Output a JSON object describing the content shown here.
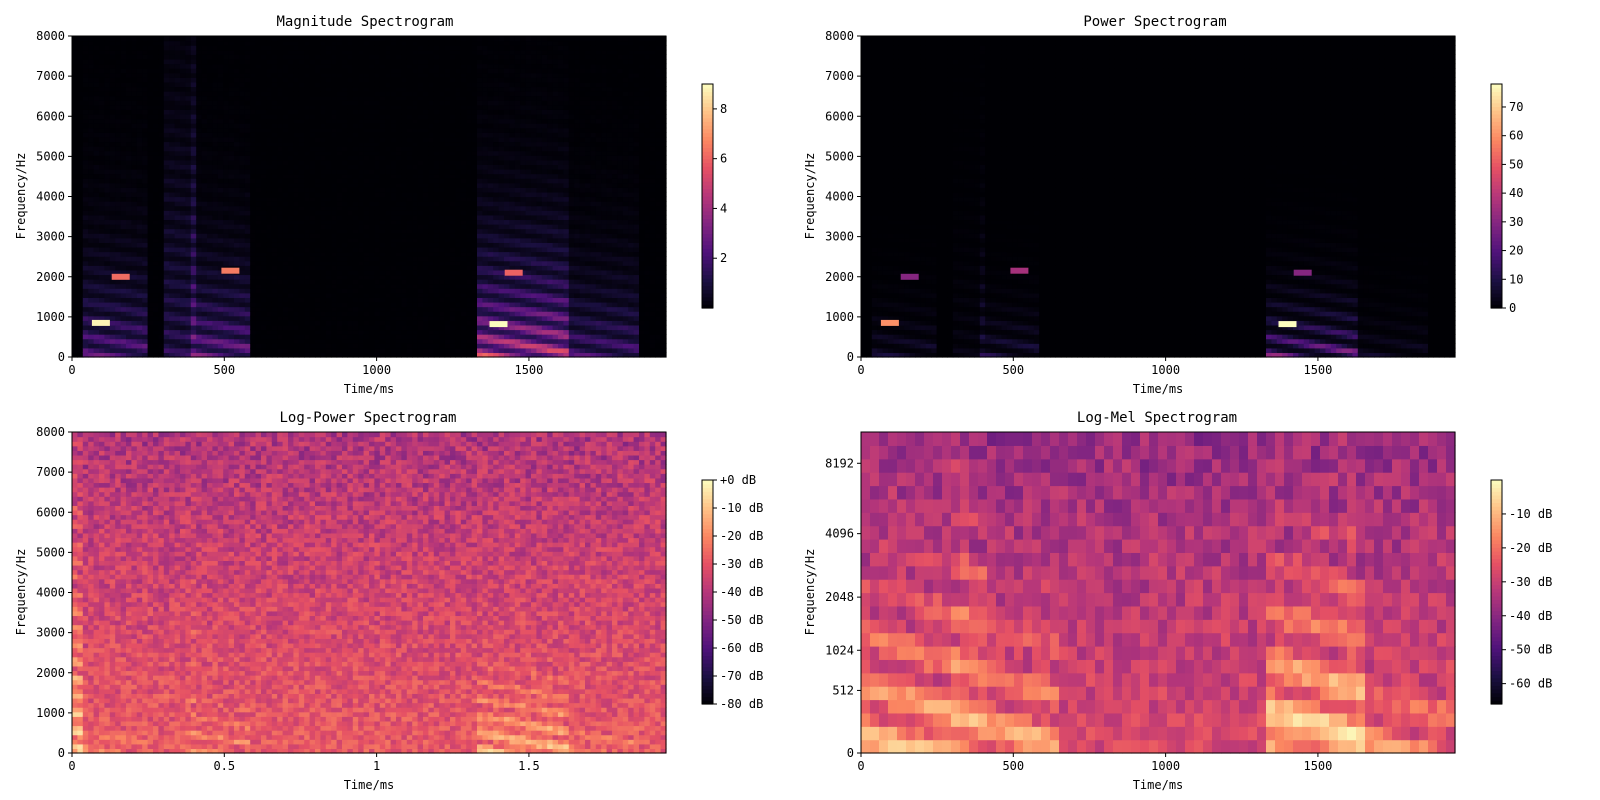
{
  "palette": {
    "magma": [
      "#000004",
      "#1c1044",
      "#4f127b",
      "#812581",
      "#b5367a",
      "#e55064",
      "#fb8761",
      "#fec287",
      "#fcfdbf"
    ],
    "frame": "#000000",
    "background": "#ffffff"
  },
  "chart_data": [
    {
      "type": "heatmap",
      "title": "Magnitude Spectrogram",
      "xlabel": "Time/ms",
      "ylabel": "Frequency/Hz",
      "xlim": [
        0,
        1950
      ],
      "ylim": [
        0,
        8000
      ],
      "x_ticks": [
        {
          "value": 0,
          "label": "0"
        },
        {
          "value": 500,
          "label": "500"
        },
        {
          "value": 1000,
          "label": "1000"
        },
        {
          "value": 1500,
          "label": "1500"
        }
      ],
      "y_ticks": [
        {
          "value": 0,
          "label": "0"
        },
        {
          "value": 1000,
          "label": "1000"
        },
        {
          "value": 2000,
          "label": "2000"
        },
        {
          "value": 3000,
          "label": "3000"
        },
        {
          "value": 4000,
          "label": "4000"
        },
        {
          "value": 5000,
          "label": "5000"
        },
        {
          "value": 6000,
          "label": "6000"
        },
        {
          "value": 7000,
          "label": "7000"
        },
        {
          "value": 8000,
          "label": "8000"
        }
      ],
      "colorbar": {
        "range": [
          0,
          9
        ],
        "ticks": [
          {
            "value": 2,
            "label": "2"
          },
          {
            "value": 4,
            "label": "4"
          },
          {
            "value": 6,
            "label": "6"
          },
          {
            "value": 8,
            "label": "8"
          }
        ]
      },
      "energy_gamma": 1.7,
      "floor": 0.02,
      "noise": 0.03,
      "voiced_segments": [
        {
          "t0": 40,
          "t1": 230,
          "level": 0.55,
          "hf": 0.4
        },
        {
          "t0": 320,
          "t1": 395,
          "level": 0.4,
          "hf": 1.0
        },
        {
          "t0": 400,
          "t1": 580,
          "level": 0.6,
          "hf": 0.35
        },
        {
          "t0": 1345,
          "t1": 1620,
          "level": 0.8,
          "hf": 0.45
        },
        {
          "t0": 1620,
          "t1": 1850,
          "level": 0.5,
          "hf": 0.3
        }
      ],
      "hotspots": [
        {
          "t": 95,
          "f": 850,
          "value": 8.8
        },
        {
          "t": 160,
          "f": 2000,
          "value": 6.2
        },
        {
          "t": 520,
          "f": 2150,
          "value": 6.5
        },
        {
          "t": 1400,
          "f": 820,
          "value": 9.0
        },
        {
          "t": 1450,
          "f": 2100,
          "value": 6.0
        }
      ]
    },
    {
      "type": "heatmap",
      "title": "Power Spectrogram",
      "xlabel": "Time/ms",
      "ylabel": "Frequency/Hz",
      "xlim": [
        0,
        1950
      ],
      "ylim": [
        0,
        8000
      ],
      "x_ticks": [
        {
          "value": 0,
          "label": "0"
        },
        {
          "value": 500,
          "label": "500"
        },
        {
          "value": 1000,
          "label": "1000"
        },
        {
          "value": 1500,
          "label": "1500"
        }
      ],
      "y_ticks": [
        {
          "value": 0,
          "label": "0"
        },
        {
          "value": 1000,
          "label": "1000"
        },
        {
          "value": 2000,
          "label": "2000"
        },
        {
          "value": 3000,
          "label": "3000"
        },
        {
          "value": 4000,
          "label": "4000"
        },
        {
          "value": 5000,
          "label": "5000"
        },
        {
          "value": 6000,
          "label": "6000"
        },
        {
          "value": 7000,
          "label": "7000"
        },
        {
          "value": 8000,
          "label": "8000"
        }
      ],
      "colorbar": {
        "range": [
          0,
          78
        ],
        "ticks": [
          {
            "value": 0,
            "label": "0"
          },
          {
            "value": 10,
            "label": "10"
          },
          {
            "value": 20,
            "label": "20"
          },
          {
            "value": 30,
            "label": "30"
          },
          {
            "value": 40,
            "label": "40"
          },
          {
            "value": 50,
            "label": "50"
          },
          {
            "value": 60,
            "label": "60"
          },
          {
            "value": 70,
            "label": "70"
          }
        ]
      },
      "energy_gamma": 3.4,
      "floor": 0.0,
      "noise": 0.01,
      "voiced_segments": [
        {
          "t0": 40,
          "t1": 230,
          "level": 0.55,
          "hf": 0.4
        },
        {
          "t0": 320,
          "t1": 395,
          "level": 0.4,
          "hf": 1.0
        },
        {
          "t0": 400,
          "t1": 580,
          "level": 0.6,
          "hf": 0.35
        },
        {
          "t0": 1345,
          "t1": 1620,
          "level": 0.8,
          "hf": 0.45
        },
        {
          "t0": 1620,
          "t1": 1850,
          "level": 0.5,
          "hf": 0.3
        }
      ],
      "hotspots": [
        {
          "t": 95,
          "f": 850,
          "value": 60
        },
        {
          "t": 160,
          "f": 2000,
          "value": 30
        },
        {
          "t": 520,
          "f": 2150,
          "value": 36
        },
        {
          "t": 1400,
          "f": 820,
          "value": 78
        },
        {
          "t": 1450,
          "f": 2100,
          "value": 30
        }
      ]
    },
    {
      "type": "heatmap",
      "title": "Log-Power Spectrogram",
      "xlabel": "Time/ms",
      "ylabel": "Frequency/Hz",
      "xlim": [
        0,
        1.95
      ],
      "ylim": [
        0,
        8000
      ],
      "x_ticks": [
        {
          "value": 0,
          "label": "0"
        },
        {
          "value": 0.5,
          "label": "0.5"
        },
        {
          "value": 1,
          "label": "1"
        },
        {
          "value": 1.5,
          "label": "1.5"
        }
      ],
      "y_ticks": [
        {
          "value": 0,
          "label": "0"
        },
        {
          "value": 1000,
          "label": "1000"
        },
        {
          "value": 2000,
          "label": "2000"
        },
        {
          "value": 3000,
          "label": "3000"
        },
        {
          "value": 4000,
          "label": "4000"
        },
        {
          "value": 5000,
          "label": "5000"
        },
        {
          "value": 6000,
          "label": "6000"
        },
        {
          "value": 7000,
          "label": "7000"
        },
        {
          "value": 8000,
          "label": "8000"
        }
      ],
      "colorbar": {
        "range": [
          -80,
          0
        ],
        "ticks": [
          {
            "value": 0,
            "label": "+0 dB"
          },
          {
            "value": -10,
            "label": "-10 dB"
          },
          {
            "value": -20,
            "label": "-20 dB"
          },
          {
            "value": -30,
            "label": "-30 dB"
          },
          {
            "value": -40,
            "label": "-40 dB"
          },
          {
            "value": -50,
            "label": "-50 dB"
          },
          {
            "value": -60,
            "label": "-60 dB"
          },
          {
            "value": -70,
            "label": "-70 dB"
          },
          {
            "value": -80,
            "label": "-80 dB"
          }
        ]
      },
      "energy_gamma": 0.45,
      "floor": 0.38,
      "noise": 0.2,
      "voiced_segments": [
        {
          "t0": 0.0,
          "t1": 0.02,
          "level": 0.9,
          "hf": 1.0
        },
        {
          "t0": 0.04,
          "t1": 0.23,
          "level": 0.55,
          "hf": 0.5
        },
        {
          "t0": 0.32,
          "t1": 0.395,
          "level": 0.5,
          "hf": 1.0
        },
        {
          "t0": 0.4,
          "t1": 0.58,
          "level": 0.6,
          "hf": 0.45
        },
        {
          "t0": 1.345,
          "t1": 1.62,
          "level": 0.8,
          "hf": 0.55
        },
        {
          "t0": 1.62,
          "t1": 1.85,
          "level": 0.55,
          "hf": 0.4
        }
      ],
      "hotspots": []
    },
    {
      "type": "heatmap",
      "title": "Log-Mel Spectrogram",
      "xlabel": "Time/ms",
      "ylabel": "Frequency/Hz",
      "xlim": [
        0,
        1950
      ],
      "ylim": [
        0,
        11000
      ],
      "y_scale": "mel",
      "x_ticks": [
        {
          "value": 0,
          "label": "0"
        },
        {
          "value": 500,
          "label": "500"
        },
        {
          "value": 1000,
          "label": "1000"
        },
        {
          "value": 1500,
          "label": "1500"
        }
      ],
      "y_ticks": [
        {
          "value": 0,
          "label": "0"
        },
        {
          "value": 512,
          "label": "512"
        },
        {
          "value": 1024,
          "label": "1024"
        },
        {
          "value": 2048,
          "label": "2048"
        },
        {
          "value": 4096,
          "label": "4096"
        },
        {
          "value": 8192,
          "label": "8192"
        }
      ],
      "colorbar": {
        "range": [
          -66,
          0
        ],
        "ticks": [
          {
            "value": -10,
            "label": "-10 dB"
          },
          {
            "value": -20,
            "label": "-20 dB"
          },
          {
            "value": -30,
            "label": "-30 dB"
          },
          {
            "value": -40,
            "label": "-40 dB"
          },
          {
            "value": -50,
            "label": "-50 dB"
          },
          {
            "value": -60,
            "label": "-60 dB"
          }
        ]
      },
      "energy_gamma": 0.5,
      "floor": 0.35,
      "noise": 0.18,
      "voiced_segments": [
        {
          "t0": 0,
          "t1": 300,
          "level": 0.85,
          "hf": 0.9
        },
        {
          "t0": 320,
          "t1": 400,
          "level": 0.9,
          "hf": 1.0
        },
        {
          "t0": 420,
          "t1": 640,
          "level": 0.8,
          "hf": 0.8
        },
        {
          "t0": 1345,
          "t1": 1650,
          "level": 1.0,
          "hf": 0.9
        },
        {
          "t0": 1650,
          "t1": 1950,
          "level": 0.7,
          "hf": 0.6
        }
      ],
      "hotspots": []
    }
  ]
}
